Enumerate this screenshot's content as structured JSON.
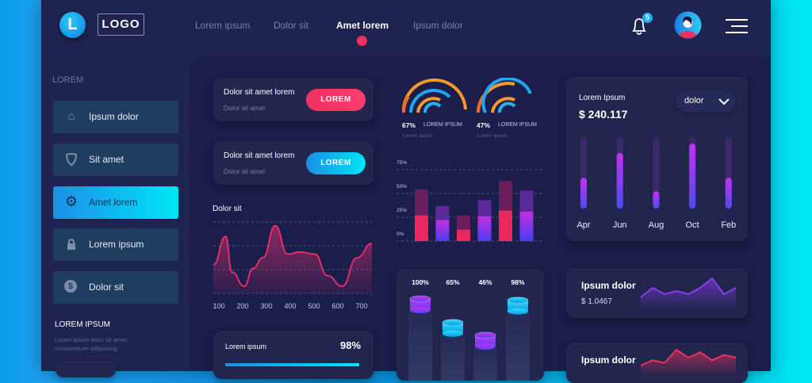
{
  "header": {
    "logo_letter": "L",
    "logo_text": "LOGO",
    "nav": [
      "Lorem ipsum",
      "Dolor sit",
      "Amet lorem",
      "Ipsum dolor"
    ],
    "active_nav": 2,
    "notification_count": "5",
    "accent": "#f0305e"
  },
  "sidebar": {
    "heading": "LOREM",
    "items": [
      {
        "label": "Ipsum dolor",
        "icon": "home-icon"
      },
      {
        "label": "Sit amet",
        "icon": "shield-icon"
      },
      {
        "label": "Amet lorem",
        "icon": "gear-icon"
      },
      {
        "label": "Lorem ipsum",
        "icon": "lock-icon"
      },
      {
        "label": "Dolor sit",
        "icon": "dollar-icon"
      }
    ],
    "active": 2,
    "promo_title": "LOREM IPSUM",
    "promo_text_1": "Lorem ipsum dolor sit amet,",
    "promo_text_2": "consectetuer adipiscing"
  },
  "cards": [
    {
      "title": "Dolor sit amet lorem",
      "subtitle": "Dolor sit amet",
      "button": "LOREM",
      "color": "#f0305e"
    },
    {
      "title": "Dolor sit amet lorem",
      "subtitle": "Dolor sit amet",
      "button": "LOREM",
      "color": "#0ac8f0"
    }
  ],
  "chart_data": [
    {
      "type": "area",
      "title": "Dolor sit",
      "x_ticks": [
        "100",
        "200",
        "300",
        "400",
        "500",
        "600",
        "700"
      ],
      "x": [
        100,
        150,
        175,
        225,
        260,
        300,
        350,
        400,
        450,
        510,
        560,
        620,
        680,
        740
      ],
      "y": [
        40,
        80,
        30,
        10,
        35,
        50,
        95,
        55,
        58,
        55,
        25,
        10,
        50,
        70
      ],
      "grid": true,
      "color": "#f0306a"
    },
    {
      "type": "bar",
      "stacked": true,
      "y_ticks": [
        "75%",
        "50%",
        "25%",
        "0%"
      ],
      "ylim": [
        0,
        75
      ],
      "lower": [
        27,
        22,
        12,
        26,
        32,
        31
      ],
      "total": [
        54,
        37,
        27,
        43,
        63,
        53
      ]
    },
    {
      "type": "bar",
      "title": "Lorem Ipsum",
      "value_label": "$ 240.117",
      "dropdown": "dolor",
      "categories": [
        "Apr",
        "Jun",
        "Aug",
        "Oct",
        "Feb"
      ],
      "values": [
        0.43,
        0.78,
        0.24,
        0.91,
        0.43
      ]
    },
    {
      "type": "bar",
      "labels": [
        "100%",
        "65%",
        "46%",
        "98%"
      ],
      "values": [
        100,
        65,
        46,
        98
      ]
    },
    {
      "type": "line",
      "title": "Ipsum dolor",
      "value_label": "$ 1.0467",
      "values": [
        3,
        6,
        4,
        5,
        4,
        6,
        9,
        4,
        6
      ],
      "color": "#8a3cf0"
    },
    {
      "type": "line",
      "title": "Ipsum dolor",
      "values": [
        3,
        5,
        4,
        9,
        6,
        8,
        5,
        7,
        6
      ],
      "color": "#f0305e"
    }
  ],
  "gauges": [
    {
      "percent": "67%",
      "label": "LOREM IPSUM",
      "sub": "Lorem ipsum"
    },
    {
      "percent": "47%",
      "label": "LOREM IPSUM",
      "sub": "Lorem ipsum"
    }
  ],
  "progress": {
    "label": "Lorem ipsum",
    "value": "98%",
    "fraction": 0.98
  }
}
